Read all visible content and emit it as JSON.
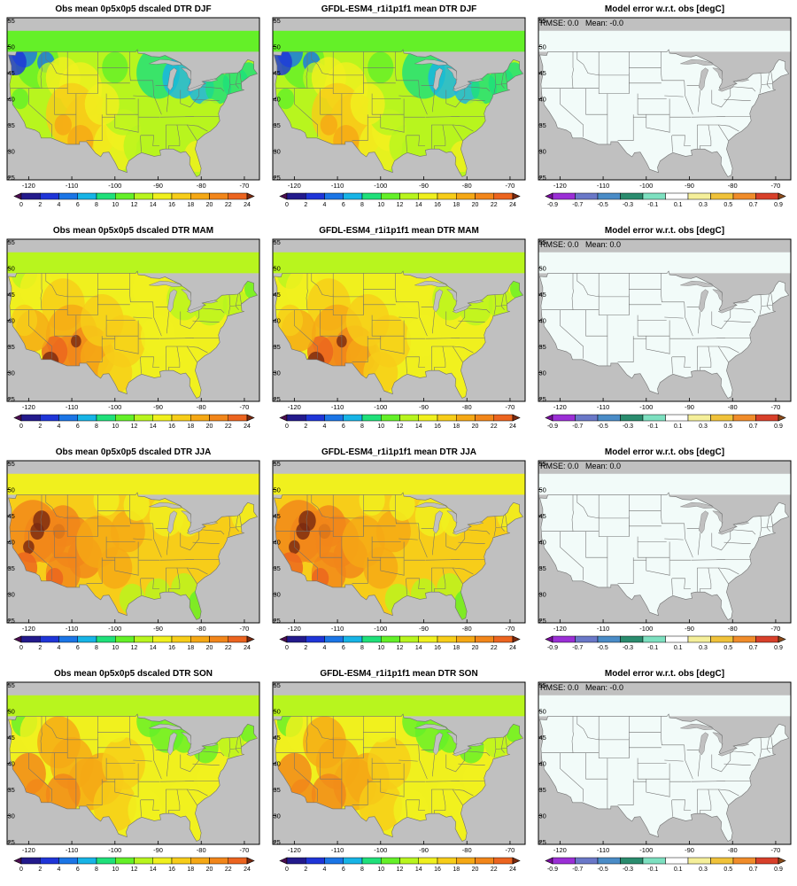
{
  "figure": {
    "rows": [
      {
        "season": "DJF",
        "panels": [
          {
            "title": "Obs mean 0p5x0p5 dscaled DTR DJF",
            "kind": "field",
            "palette": "dtr",
            "stat": ""
          },
          {
            "title": "GFDL-ESM4_r1i1p1f1 mean DTR DJF",
            "kind": "field",
            "palette": "dtr",
            "stat": ""
          },
          {
            "title": "Model error w.r.t. obs [degC]",
            "kind": "error",
            "palette": "err",
            "stat": "RMSE: 0.0   Mean: -0.0"
          }
        ]
      },
      {
        "season": "MAM",
        "panels": [
          {
            "title": "Obs mean 0p5x0p5 dscaled DTR MAM",
            "kind": "field",
            "palette": "dtr",
            "stat": ""
          },
          {
            "title": "GFDL-ESM4_r1i1p1f1 mean DTR MAM",
            "kind": "field",
            "palette": "dtr",
            "stat": ""
          },
          {
            "title": "Model error w.r.t. obs [degC]",
            "kind": "error",
            "palette": "err",
            "stat": "RMSE: 0.0   Mean: 0.0"
          }
        ]
      },
      {
        "season": "JJA",
        "panels": [
          {
            "title": "Obs mean 0p5x0p5 dscaled DTR JJA",
            "kind": "field",
            "palette": "dtr",
            "stat": ""
          },
          {
            "title": "GFDL-ESM4_r1i1p1f1 mean DTR JJA",
            "kind": "field",
            "palette": "dtr",
            "stat": ""
          },
          {
            "title": "Model error w.r.t. obs [degC]",
            "kind": "error",
            "palette": "err",
            "stat": "RMSE: 0.0   Mean: 0.0"
          }
        ]
      },
      {
        "season": "SON",
        "panels": [
          {
            "title": "Obs mean 0p5x0p5 dscaled DTR SON",
            "kind": "field",
            "palette": "dtr",
            "stat": ""
          },
          {
            "title": "GFDL-ESM4_r1i1p1f1 mean DTR SON",
            "kind": "field",
            "palette": "dtr",
            "stat": ""
          },
          {
            "title": "Model error w.r.t. obs [degC]",
            "kind": "error",
            "palette": "err",
            "stat": "RMSE: 0.0   Mean: -0.0"
          }
        ]
      }
    ],
    "map_lon_range": [
      -125,
      -66.5
    ],
    "map_lat_range": [
      24.5,
      55.5
    ],
    "lon_ticks": [
      "-120",
      "-110",
      "-100",
      "-90",
      "-80",
      "-70"
    ],
    "lon_tick_values": [
      -120,
      -110,
      -100,
      -90,
      -80,
      -70
    ],
    "lat_ticks": [
      "25",
      "30",
      "35",
      "40",
      "45",
      "50",
      "55"
    ],
    "lat_tick_values": [
      25,
      30,
      35,
      40,
      45,
      50,
      55
    ],
    "colorbars": {
      "dtr": {
        "labels": [
          "0",
          "2",
          "4",
          "6",
          "8",
          "10",
          "12",
          "14",
          "16",
          "18",
          "20",
          "22",
          "24"
        ],
        "colors": [
          "#4b0d4f",
          "#231a8c",
          "#1f35d8",
          "#1b75e6",
          "#17b4e6",
          "#1fe07a",
          "#64f028",
          "#b8f51e",
          "#f0f01e",
          "#f7cd19",
          "#f5a815",
          "#f2861a",
          "#ec641f",
          "#7a2a10"
        ]
      },
      "err": {
        "labels": [
          "-0.9",
          "-0.7",
          "-0.5",
          "-0.3",
          "-0.1",
          "0.1",
          "0.3",
          "0.5",
          "0.7",
          "0.9"
        ],
        "colors": [
          "#7a0d9e",
          "#9b2fd6",
          "#6a78c8",
          "#4a8cc7",
          "#2a8c6e",
          "#7de0c0",
          "#ffffff",
          "#f5ef9a",
          "#f0c23a",
          "#f08c2a",
          "#d8402a",
          "#8a4a1a"
        ]
      }
    },
    "colors": {
      "ocean": "#c0c0c0",
      "error_land": "#f2fbf9",
      "state_lines": "#707070"
    }
  }
}
